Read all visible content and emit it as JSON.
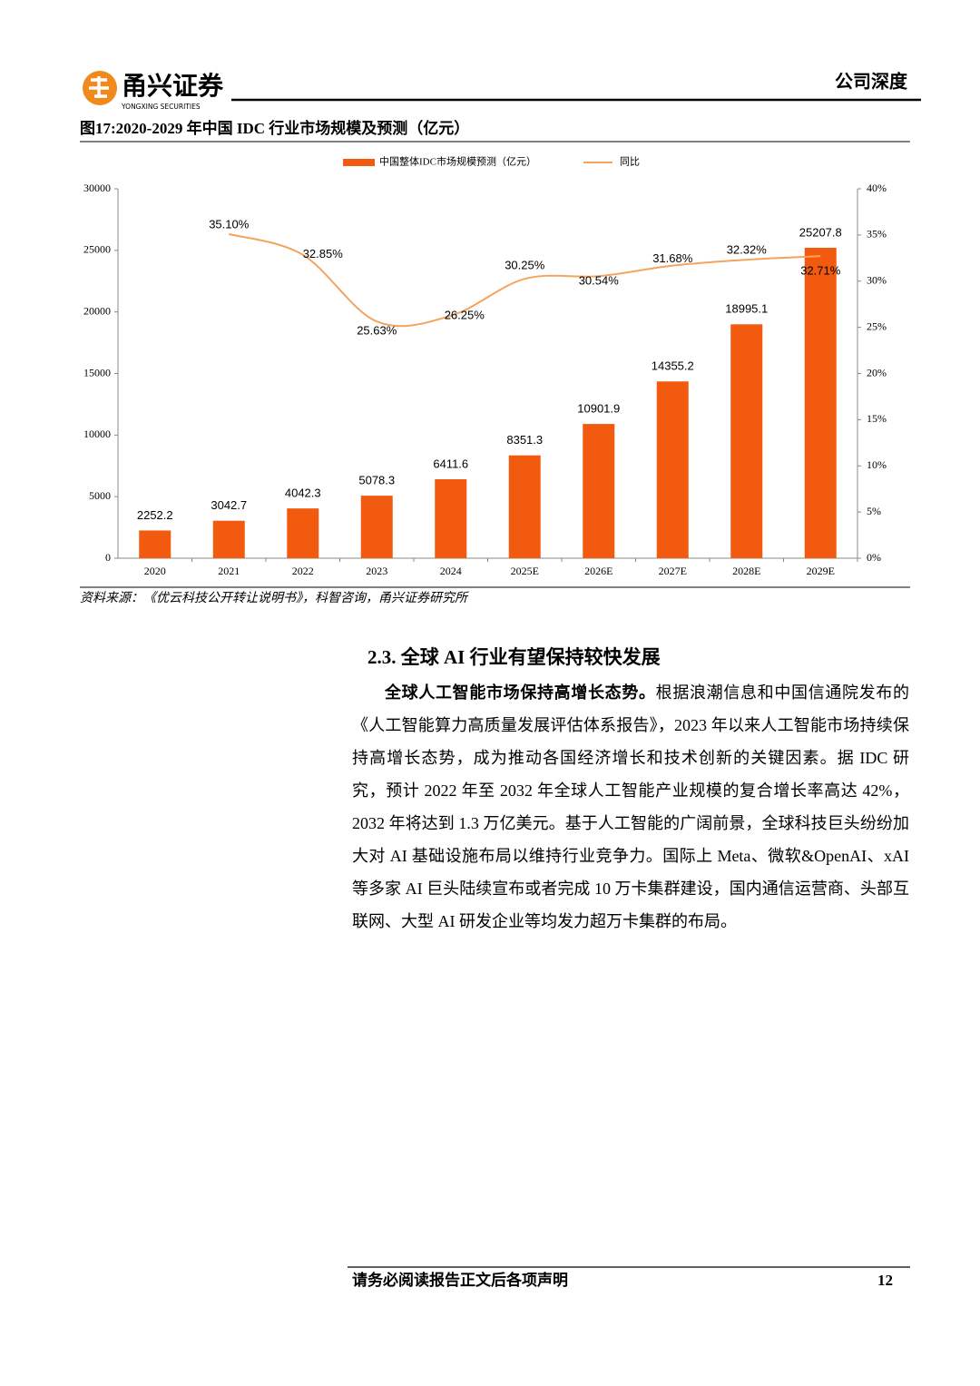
{
  "header": {
    "brand": "甬兴证券",
    "brand_en": "YONGXING SECURITIES",
    "report_type": "公司深度"
  },
  "figure": {
    "title": "图17:2020-2029 年中国 IDC 行业市场规模及预测（亿元）",
    "source": "资料来源：《优云科技公开转让说明书》，科智咨询，甬兴证券研究所"
  },
  "chart_data": {
    "type": "bar",
    "categories": [
      "2020",
      "2021",
      "2022",
      "2023",
      "2024",
      "2025E",
      "2026E",
      "2027E",
      "2028E",
      "2029E"
    ],
    "series": [
      {
        "name": "中国整体IDC市场规模预测（亿元）",
        "type": "bar",
        "color": "#f25a0f",
        "values": [
          2252.2,
          3042.7,
          4042.3,
          5078.3,
          6411.6,
          8351.3,
          10901.9,
          14355.2,
          18995.1,
          25207.8
        ]
      },
      {
        "name": "同比",
        "type": "line",
        "axis": "y2",
        "color": "#f5a45e",
        "values": [
          null,
          35.1,
          32.85,
          25.63,
          26.25,
          30.25,
          30.54,
          31.68,
          32.32,
          32.71
        ],
        "value_labels": [
          null,
          "35.10%",
          "32.85%",
          "25.63%",
          "26.25%",
          "30.25%",
          "30.54%",
          "31.68%",
          "32.32%",
          "32.71%"
        ]
      }
    ],
    "ylim": [
      0,
      30000
    ],
    "yticks": [
      0,
      5000,
      10000,
      15000,
      20000,
      25000,
      30000
    ],
    "y2lim": [
      0,
      40
    ],
    "y2ticks": [
      {
        "value": 0,
        "label": "0%"
      },
      {
        "value": 5,
        "label": "5%"
      },
      {
        "value": 10,
        "label": "10%"
      },
      {
        "value": 15,
        "label": "15%"
      },
      {
        "value": 20,
        "label": "20%"
      },
      {
        "value": 25,
        "label": "25%"
      },
      {
        "value": 30,
        "label": "30%"
      },
      {
        "value": 35,
        "label": "35%"
      },
      {
        "value": 40,
        "label": "40%"
      }
    ],
    "legend": "top"
  },
  "section": {
    "heading": "2.3. 全球 AI 行业有望保持较快发展",
    "lead": "全球人工智能市场保持高增长态势。",
    "text": "根据浪潮信息和中国信通院发布的《人工智能算力高质量发展评估体系报告》，2023 年以来人工智能市场持续保持高增长态势，成为推动各国经济增长和技术创新的关键因素。据 IDC 研究，预计 2022 年至 2032 年全球人工智能产业规模的复合增长率高达 42%，2032 年将达到 1.3 万亿美元。基于人工智能的广阔前景，全球科技巨头纷纷加大对 AI 基础设施布局以维持行业竞争力。国际上 Meta、微软&OpenAI、xAI 等多家 AI 巨头陆续宣布或者完成 10 万卡集群建设，国内通信运营商、头部互联网、大型 AI 研发企业等均发力超万卡集群的布局。"
  },
  "footer": {
    "disclaimer": "请务必阅读报告正文后各项声明",
    "page": 12
  }
}
